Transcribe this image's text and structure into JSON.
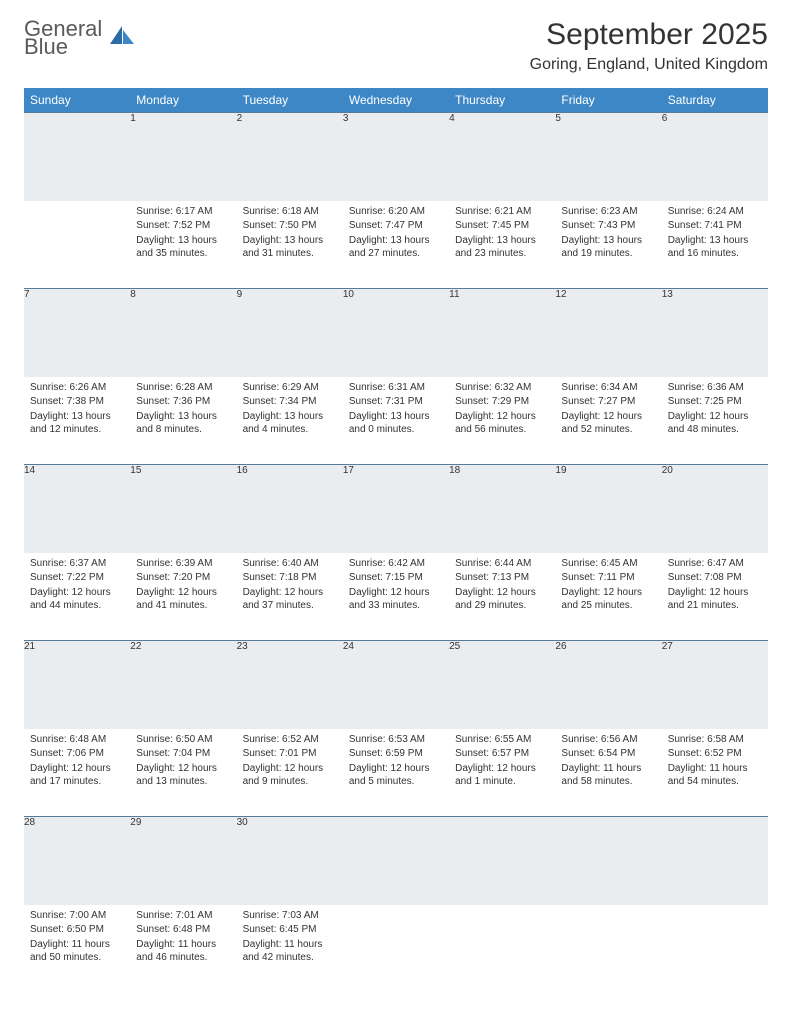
{
  "logo": {
    "line1": "General",
    "line2": "Blue"
  },
  "title": "September 2025",
  "location": "Goring, England, United Kingdom",
  "colors": {
    "header_bg": "#3d87c7",
    "header_text": "#ffffff",
    "daynum_bg": "#e9edf0",
    "border": "#5a7a9a",
    "logo_gray": "#5a5a5a",
    "logo_blue": "#3b7cc4"
  },
  "fonts": {
    "title_size": 30,
    "location_size": 16,
    "dayheader_size": 12,
    "cell_size": 10
  },
  "weekdays": [
    "Sunday",
    "Monday",
    "Tuesday",
    "Wednesday",
    "Thursday",
    "Friday",
    "Saturday"
  ],
  "weeks": [
    [
      null,
      {
        "n": "1",
        "sunrise": "6:17 AM",
        "sunset": "7:52 PM",
        "daylight": "13 hours and 35 minutes."
      },
      {
        "n": "2",
        "sunrise": "6:18 AM",
        "sunset": "7:50 PM",
        "daylight": "13 hours and 31 minutes."
      },
      {
        "n": "3",
        "sunrise": "6:20 AM",
        "sunset": "7:47 PM",
        "daylight": "13 hours and 27 minutes."
      },
      {
        "n": "4",
        "sunrise": "6:21 AM",
        "sunset": "7:45 PM",
        "daylight": "13 hours and 23 minutes."
      },
      {
        "n": "5",
        "sunrise": "6:23 AM",
        "sunset": "7:43 PM",
        "daylight": "13 hours and 19 minutes."
      },
      {
        "n": "6",
        "sunrise": "6:24 AM",
        "sunset": "7:41 PM",
        "daylight": "13 hours and 16 minutes."
      }
    ],
    [
      {
        "n": "7",
        "sunrise": "6:26 AM",
        "sunset": "7:38 PM",
        "daylight": "13 hours and 12 minutes."
      },
      {
        "n": "8",
        "sunrise": "6:28 AM",
        "sunset": "7:36 PM",
        "daylight": "13 hours and 8 minutes."
      },
      {
        "n": "9",
        "sunrise": "6:29 AM",
        "sunset": "7:34 PM",
        "daylight": "13 hours and 4 minutes."
      },
      {
        "n": "10",
        "sunrise": "6:31 AM",
        "sunset": "7:31 PM",
        "daylight": "13 hours and 0 minutes."
      },
      {
        "n": "11",
        "sunrise": "6:32 AM",
        "sunset": "7:29 PM",
        "daylight": "12 hours and 56 minutes."
      },
      {
        "n": "12",
        "sunrise": "6:34 AM",
        "sunset": "7:27 PM",
        "daylight": "12 hours and 52 minutes."
      },
      {
        "n": "13",
        "sunrise": "6:36 AM",
        "sunset": "7:25 PM",
        "daylight": "12 hours and 48 minutes."
      }
    ],
    [
      {
        "n": "14",
        "sunrise": "6:37 AM",
        "sunset": "7:22 PM",
        "daylight": "12 hours and 44 minutes."
      },
      {
        "n": "15",
        "sunrise": "6:39 AM",
        "sunset": "7:20 PM",
        "daylight": "12 hours and 41 minutes."
      },
      {
        "n": "16",
        "sunrise": "6:40 AM",
        "sunset": "7:18 PM",
        "daylight": "12 hours and 37 minutes."
      },
      {
        "n": "17",
        "sunrise": "6:42 AM",
        "sunset": "7:15 PM",
        "daylight": "12 hours and 33 minutes."
      },
      {
        "n": "18",
        "sunrise": "6:44 AM",
        "sunset": "7:13 PM",
        "daylight": "12 hours and 29 minutes."
      },
      {
        "n": "19",
        "sunrise": "6:45 AM",
        "sunset": "7:11 PM",
        "daylight": "12 hours and 25 minutes."
      },
      {
        "n": "20",
        "sunrise": "6:47 AM",
        "sunset": "7:08 PM",
        "daylight": "12 hours and 21 minutes."
      }
    ],
    [
      {
        "n": "21",
        "sunrise": "6:48 AM",
        "sunset": "7:06 PM",
        "daylight": "12 hours and 17 minutes."
      },
      {
        "n": "22",
        "sunrise": "6:50 AM",
        "sunset": "7:04 PM",
        "daylight": "12 hours and 13 minutes."
      },
      {
        "n": "23",
        "sunrise": "6:52 AM",
        "sunset": "7:01 PM",
        "daylight": "12 hours and 9 minutes."
      },
      {
        "n": "24",
        "sunrise": "6:53 AM",
        "sunset": "6:59 PM",
        "daylight": "12 hours and 5 minutes."
      },
      {
        "n": "25",
        "sunrise": "6:55 AM",
        "sunset": "6:57 PM",
        "daylight": "12 hours and 1 minute."
      },
      {
        "n": "26",
        "sunrise": "6:56 AM",
        "sunset": "6:54 PM",
        "daylight": "11 hours and 58 minutes."
      },
      {
        "n": "27",
        "sunrise": "6:58 AM",
        "sunset": "6:52 PM",
        "daylight": "11 hours and 54 minutes."
      }
    ],
    [
      {
        "n": "28",
        "sunrise": "7:00 AM",
        "sunset": "6:50 PM",
        "daylight": "11 hours and 50 minutes."
      },
      {
        "n": "29",
        "sunrise": "7:01 AM",
        "sunset": "6:48 PM",
        "daylight": "11 hours and 46 minutes."
      },
      {
        "n": "30",
        "sunrise": "7:03 AM",
        "sunset": "6:45 PM",
        "daylight": "11 hours and 42 minutes."
      },
      null,
      null,
      null,
      null
    ]
  ],
  "labels": {
    "sunrise": "Sunrise:",
    "sunset": "Sunset:",
    "daylight": "Daylight:"
  }
}
